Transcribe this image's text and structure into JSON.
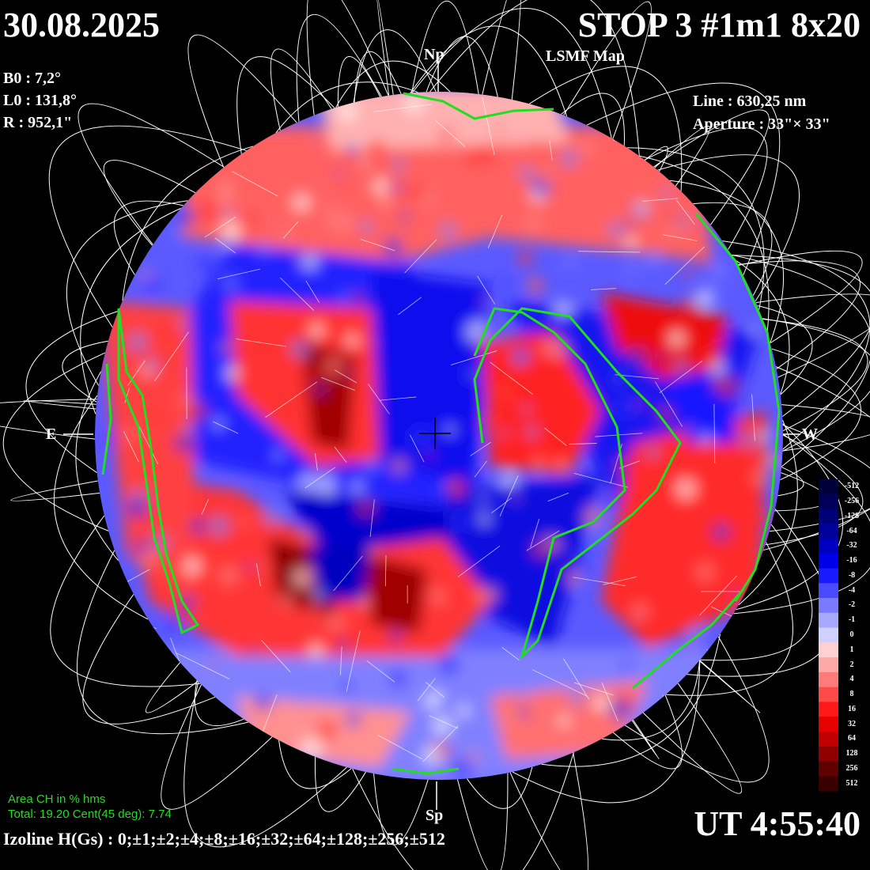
{
  "header": {
    "date": "30.08.2025",
    "title": "STOP 3 #1m1 8x20",
    "subtitle": "LSMF  Map"
  },
  "ephemeris": {
    "b0": "B0 : 7,2°",
    "l0": "L0 : 131,8°",
    "r": "R  : 952,1\""
  },
  "instrument": {
    "line": "Line :  630,25 nm",
    "aperture": "Aperture : 33\"× 33\""
  },
  "poles": {
    "north": "Np",
    "south": "Sp",
    "east": "E",
    "west": "W"
  },
  "coronal_holes": {
    "heading": "Area CH in % hms",
    "stats": "Total: 19.20    Cent(45 deg): 7.74",
    "total": 19.2,
    "central_45deg": 7.74,
    "contour_color": "#22dd22"
  },
  "footer": {
    "izoline": "Izoline H(Gs) : 0;±1;±2;±4;±8;±16;±32;±64;±128;±256;±512",
    "ut": "UT 4:55:40"
  },
  "colorbar": {
    "levels": [
      "-512",
      "-256",
      "-128",
      "-64",
      "-32",
      "-16",
      "-8",
      "-4",
      "-2",
      "-1",
      "0",
      "1",
      "2",
      "4",
      "8",
      "16",
      "32",
      "64",
      "128",
      "256",
      "512"
    ],
    "colors": [
      "#00003a",
      "#000058",
      "#000078",
      "#00009a",
      "#0000c0",
      "#0000e8",
      "#1a1aff",
      "#4a4aff",
      "#7a7aff",
      "#a8a8ff",
      "#d0d0ff",
      "#ffd0d0",
      "#ffa8a8",
      "#ff7a7a",
      "#ff4a4a",
      "#ff1a1a",
      "#e80000",
      "#c00000",
      "#900000",
      "#600000",
      "#3a0000"
    ],
    "positive_color": "#ff0000",
    "negative_color": "#0000ff"
  }
}
